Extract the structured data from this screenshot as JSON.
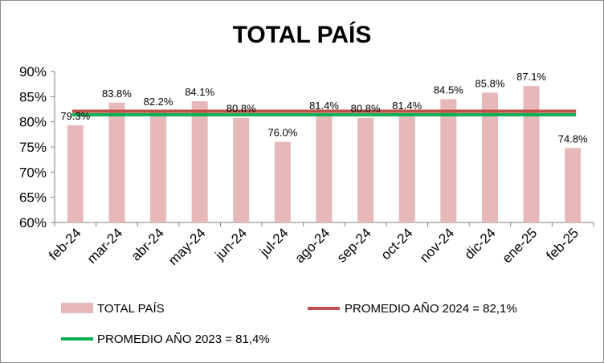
{
  "chart_data": {
    "type": "bar",
    "title": "TOTAL PAÍS",
    "categories": [
      "feb-24",
      "mar-24",
      "abr-24",
      "may-24",
      "jun-24",
      "jul-24",
      "ago-24",
      "sep-24",
      "oct-24",
      "nov-24",
      "dic-24",
      "ene-25",
      "feb-25"
    ],
    "series": [
      {
        "name": "TOTAL PAÍS",
        "type": "bar",
        "values": [
          79.3,
          83.8,
          82.2,
          84.1,
          80.8,
          76.0,
          81.4,
          80.8,
          81.4,
          84.5,
          85.8,
          87.1,
          74.8
        ],
        "data_labels": [
          "79.3%",
          "83.8%",
          "82.2%",
          "84.1%",
          "80.8%",
          "76.0%",
          "81.4%",
          "80.8%",
          "81.4%",
          "84.5%",
          "85.8%",
          "87.1%",
          "74.8%"
        ],
        "color": "#e6b8b8"
      },
      {
        "name": "PROMEDIO AÑO 2024 = 82,1%",
        "type": "line",
        "value": 82.1,
        "color": "#c0504d"
      },
      {
        "name": "PROMEDIO AÑO 2023 = 81,4%",
        "type": "line",
        "value": 81.4,
        "color": "#00b050"
      }
    ],
    "ylim": [
      60,
      90
    ],
    "yticks": [
      "60%",
      "65%",
      "70%",
      "75%",
      "80%",
      "85%",
      "90%"
    ],
    "ytick_values": [
      60,
      65,
      70,
      75,
      80,
      85,
      90
    ],
    "grid": false,
    "legend_position": "bottom"
  }
}
